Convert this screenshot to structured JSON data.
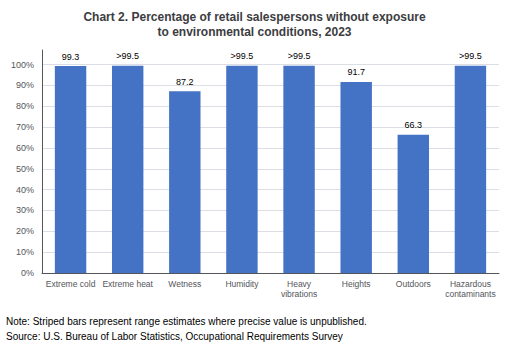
{
  "chart_data": {
    "type": "bar",
    "title": "Chart 2. Percentage of retail salespersons without exposure\nto environmental conditions, 2023",
    "categories": [
      "Extreme cold",
      "Extreme heat",
      "Wetness",
      "Humidity",
      "Heavy\nvibrations",
      "Heights",
      "Outdoors",
      "Hazardous\ncontaminants"
    ],
    "values": [
      99.3,
      99.5,
      87.2,
      99.5,
      99.5,
      91.7,
      66.3,
      99.5
    ],
    "value_labels": [
      "99.3",
      ">99.5",
      "87.2",
      ">99.5",
      ">99.5",
      "91.7",
      "66.3",
      ">99.5"
    ],
    "striped": [
      false,
      true,
      false,
      true,
      true,
      false,
      false,
      true
    ],
    "color": "#4472C4",
    "ylim": [
      0,
      107
    ],
    "yticks": [
      {
        "value": 0,
        "label": "0%"
      },
      {
        "value": 10,
        "label": "10%"
      },
      {
        "value": 20,
        "label": "20%"
      },
      {
        "value": 30,
        "label": "30%"
      },
      {
        "value": 40,
        "label": "40%"
      },
      {
        "value": 50,
        "label": "50%"
      },
      {
        "value": 60,
        "label": "60%"
      },
      {
        "value": 70,
        "label": "70%"
      },
      {
        "value": 80,
        "label": "80%"
      },
      {
        "value": 90,
        "label": "90%"
      },
      {
        "value": 100,
        "label": "100%"
      }
    ],
    "grid": true,
    "data_labels": true,
    "annotations": [
      "Note: Striped bars represent range estimates where precise value is unpublished.",
      "Source: U.S. Bureau of Labor Statistics, Occupational Requirements Survey"
    ]
  }
}
